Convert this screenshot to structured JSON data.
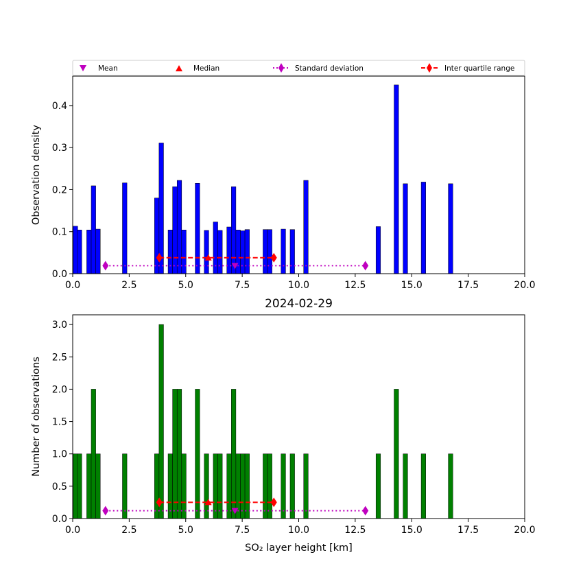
{
  "chart_data": [
    {
      "type": "bar",
      "ylabel": "Observation density",
      "xlim": [
        0,
        20
      ],
      "ylim": [
        0,
        0.47
      ],
      "x_ticks": [
        "0.0",
        "2.5",
        "5.0",
        "7.5",
        "10.0",
        "12.5",
        "15.0",
        "17.5",
        "20.0"
      ],
      "y_ticks": [
        "0.0",
        "0.1",
        "0.2",
        "0.3",
        "0.4"
      ],
      "bar_color": "#0000ff",
      "bars": [
        {
          "x": 0.12,
          "y": 0.113
        },
        {
          "x": 0.3,
          "y": 0.104
        },
        {
          "x": 0.72,
          "y": 0.104
        },
        {
          "x": 0.92,
          "y": 0.209
        },
        {
          "x": 1.12,
          "y": 0.106
        },
        {
          "x": 2.3,
          "y": 0.216
        },
        {
          "x": 3.72,
          "y": 0.18
        },
        {
          "x": 3.92,
          "y": 0.311
        },
        {
          "x": 4.32,
          "y": 0.104
        },
        {
          "x": 4.52,
          "y": 0.207
        },
        {
          "x": 4.72,
          "y": 0.222
        },
        {
          "x": 4.92,
          "y": 0.104
        },
        {
          "x": 5.52,
          "y": 0.215
        },
        {
          "x": 5.92,
          "y": 0.103
        },
        {
          "x": 6.32,
          "y": 0.123
        },
        {
          "x": 6.52,
          "y": 0.103
        },
        {
          "x": 6.92,
          "y": 0.111
        },
        {
          "x": 7.12,
          "y": 0.207
        },
        {
          "x": 7.32,
          "y": 0.104
        },
        {
          "x": 7.52,
          "y": 0.102
        },
        {
          "x": 7.72,
          "y": 0.105
        },
        {
          "x": 8.52,
          "y": 0.105
        },
        {
          "x": 8.72,
          "y": 0.105
        },
        {
          "x": 9.32,
          "y": 0.106
        },
        {
          "x": 9.72,
          "y": 0.105
        },
        {
          "x": 10.32,
          "y": 0.222
        },
        {
          "x": 13.52,
          "y": 0.112
        },
        {
          "x": 14.32,
          "y": 0.449
        },
        {
          "x": 14.72,
          "y": 0.214
        },
        {
          "x": 15.52,
          "y": 0.218
        },
        {
          "x": 16.72,
          "y": 0.214
        }
      ],
      "stats_y": {
        "std": 0.019,
        "iqr": 0.038,
        "mean": 0.019,
        "median": 0.038
      }
    },
    {
      "type": "bar",
      "title": "2024-02-29",
      "xlabel": "SO₂ layer height [km]",
      "ylabel": "Number of observations",
      "xlim": [
        0,
        20
      ],
      "ylim": [
        0,
        3.15
      ],
      "x_ticks": [
        "0.0",
        "2.5",
        "5.0",
        "7.5",
        "10.0",
        "12.5",
        "15.0",
        "17.5",
        "20.0"
      ],
      "y_ticks": [
        "0.0",
        "0.5",
        "1.0",
        "1.5",
        "2.0",
        "2.5",
        "3.0"
      ],
      "bar_color": "#008000",
      "bars": [
        {
          "x": 0.12,
          "y": 1
        },
        {
          "x": 0.3,
          "y": 1
        },
        {
          "x": 0.72,
          "y": 1
        },
        {
          "x": 0.92,
          "y": 2
        },
        {
          "x": 1.12,
          "y": 1
        },
        {
          "x": 2.3,
          "y": 1
        },
        {
          "x": 3.72,
          "y": 1
        },
        {
          "x": 3.92,
          "y": 3
        },
        {
          "x": 4.32,
          "y": 1
        },
        {
          "x": 4.52,
          "y": 2
        },
        {
          "x": 4.72,
          "y": 2
        },
        {
          "x": 4.92,
          "y": 1
        },
        {
          "x": 5.52,
          "y": 2
        },
        {
          "x": 5.92,
          "y": 1
        },
        {
          "x": 6.32,
          "y": 1
        },
        {
          "x": 6.52,
          "y": 1
        },
        {
          "x": 6.92,
          "y": 1
        },
        {
          "x": 7.12,
          "y": 2
        },
        {
          "x": 7.32,
          "y": 1
        },
        {
          "x": 7.52,
          "y": 1
        },
        {
          "x": 7.72,
          "y": 1
        },
        {
          "x": 8.52,
          "y": 1
        },
        {
          "x": 8.72,
          "y": 1
        },
        {
          "x": 9.32,
          "y": 1
        },
        {
          "x": 9.72,
          "y": 1
        },
        {
          "x": 10.32,
          "y": 1
        },
        {
          "x": 13.52,
          "y": 1
        },
        {
          "x": 14.32,
          "y": 2
        },
        {
          "x": 14.72,
          "y": 1
        },
        {
          "x": 15.52,
          "y": 1
        },
        {
          "x": 16.72,
          "y": 1
        }
      ],
      "stats_y": {
        "std": 0.12,
        "iqr": 0.25,
        "mean": 0.12,
        "median": 0.25
      }
    }
  ],
  "bar_width_km": 0.2,
  "statistics": {
    "mean": 7.18,
    "median": 6.0,
    "std_range": [
      1.45,
      12.95
    ],
    "iqr_range": [
      3.83,
      8.9
    ]
  },
  "legend": {
    "placement": "top",
    "entries": [
      {
        "label": "Mean",
        "marker": "triangle-down",
        "color": "#bf00bf"
      },
      {
        "label": "Median",
        "marker": "triangle-up",
        "color": "#ff0000"
      },
      {
        "label": "Standard deviation",
        "marker": "diamond",
        "line": "dotted",
        "color": "#bf00bf"
      },
      {
        "label": "Inter quartile range",
        "marker": "diamond",
        "line": "dashed",
        "color": "#ff0000"
      }
    ]
  }
}
